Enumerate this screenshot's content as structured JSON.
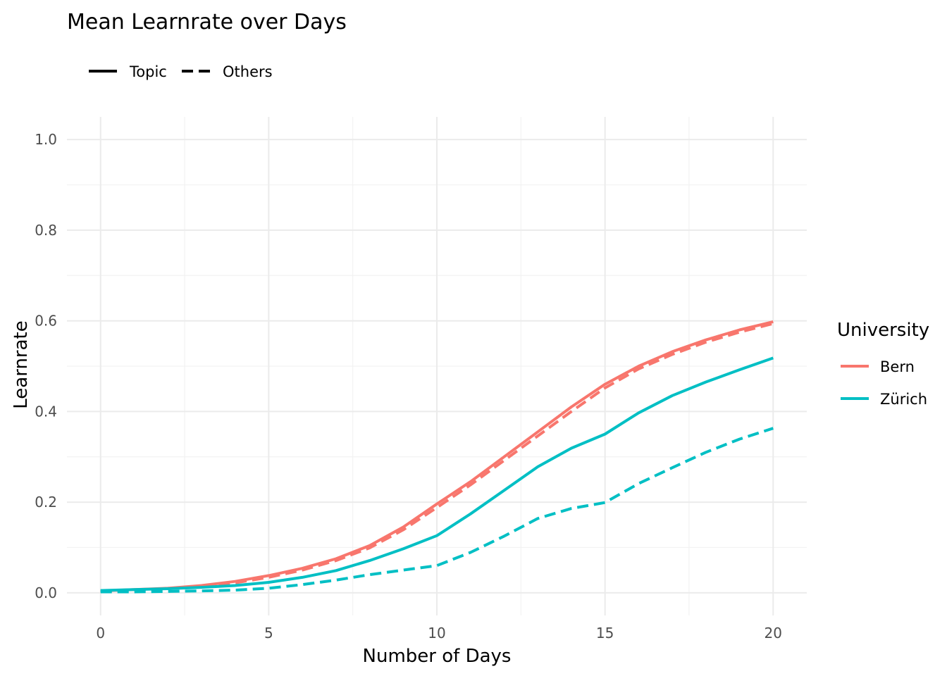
{
  "chart_data": {
    "type": "line",
    "title": "Mean Learnrate over Days",
    "xlabel": "Number of Days",
    "ylabel": "Learnrate",
    "xlim": [
      -1,
      21
    ],
    "ylim": [
      -0.05,
      1.05
    ],
    "x_ticks": [
      0,
      5,
      10,
      15,
      20
    ],
    "x_tick_labels": [
      "0",
      "5",
      "10",
      "15",
      "20"
    ],
    "y_ticks": [
      0.0,
      0.2,
      0.4,
      0.6,
      0.8,
      1.0
    ],
    "y_tick_labels": [
      "0.0",
      "0.2",
      "0.4",
      "0.6",
      "0.8",
      "1.0"
    ],
    "grid": true,
    "linetype_legend": {
      "placement": "top-left",
      "entries": [
        {
          "label": "Topic",
          "linetype": "solid"
        },
        {
          "label": "Others",
          "linetype": "dashed"
        }
      ]
    },
    "color_legend": {
      "title": "University",
      "placement": "right",
      "entries": [
        {
          "label": "Bern",
          "color": "#F8766D"
        },
        {
          "label": "Zürich",
          "color": "#00BFC4"
        }
      ]
    },
    "x": [
      0,
      1,
      2,
      3,
      4,
      5,
      6,
      7,
      8,
      9,
      10,
      11,
      12,
      13,
      14,
      15,
      16,
      17,
      18,
      19,
      20
    ],
    "series": [
      {
        "university": "Bern",
        "linetype": "solid",
        "color": "#F8766D",
        "values": [
          0.004,
          0.007,
          0.01,
          0.016,
          0.025,
          0.038,
          0.054,
          0.075,
          0.104,
          0.145,
          0.196,
          0.245,
          0.3,
          0.355,
          0.41,
          0.46,
          0.5,
          0.532,
          0.558,
          0.58,
          0.598
        ]
      },
      {
        "university": "Bern",
        "linetype": "dashed",
        "color": "#F8766D",
        "values": [
          0.003,
          0.006,
          0.009,
          0.014,
          0.022,
          0.034,
          0.05,
          0.071,
          0.099,
          0.139,
          0.188,
          0.238,
          0.292,
          0.346,
          0.4,
          0.452,
          0.494,
          0.526,
          0.553,
          0.575,
          0.594
        ]
      },
      {
        "university": "Zürich",
        "linetype": "solid",
        "color": "#00BFC4",
        "values": [
          0.005,
          0.007,
          0.009,
          0.012,
          0.016,
          0.023,
          0.034,
          0.049,
          0.071,
          0.097,
          0.126,
          0.174,
          0.226,
          0.278,
          0.319,
          0.35,
          0.397,
          0.435,
          0.465,
          0.492,
          0.518
        ]
      },
      {
        "university": "Zürich",
        "linetype": "dashed",
        "color": "#00BFC4",
        "values": [
          0.002,
          0.002,
          0.003,
          0.004,
          0.006,
          0.01,
          0.018,
          0.028,
          0.04,
          0.05,
          0.06,
          0.089,
          0.125,
          0.164,
          0.186,
          0.199,
          0.241,
          0.276,
          0.31,
          0.339,
          0.363
        ]
      }
    ]
  }
}
